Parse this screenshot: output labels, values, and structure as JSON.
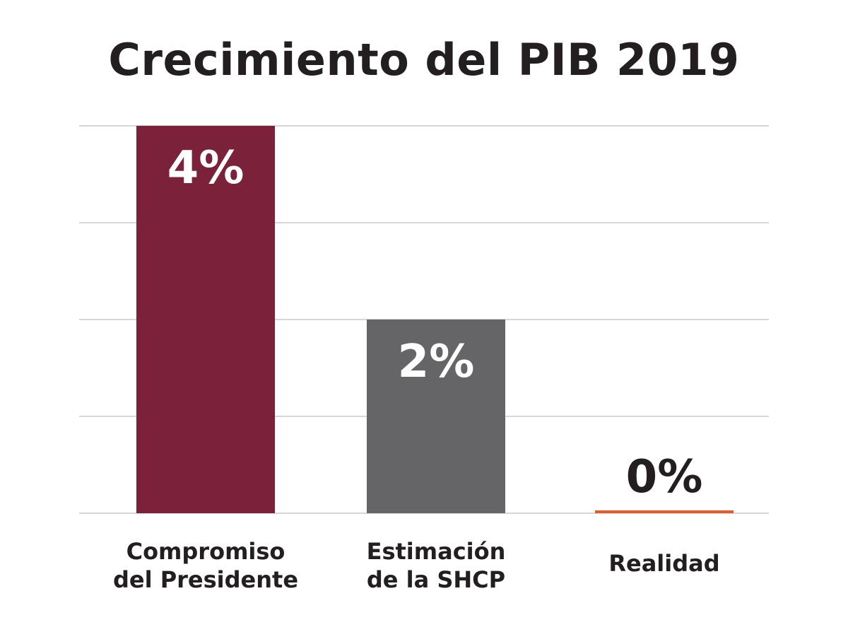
{
  "chart_data": {
    "type": "bar",
    "title": "Crecimiento del PIB 2019",
    "categories": [
      [
        "Compromiso",
        "del Presidente"
      ],
      [
        "Estimación",
        "de la SHCP"
      ],
      [
        "Realidad"
      ]
    ],
    "values": [
      4,
      2,
      0
    ],
    "data_labels": [
      "4%",
      "2%",
      "0%"
    ],
    "ylim": [
      0,
      4
    ],
    "grid": true,
    "colors": [
      "#7b2139",
      "#656466",
      "#e35a2b"
    ],
    "label_colors": [
      "#ffffff",
      "#ffffff",
      "#231f20"
    ],
    "xlabel": "",
    "ylabel": ""
  }
}
